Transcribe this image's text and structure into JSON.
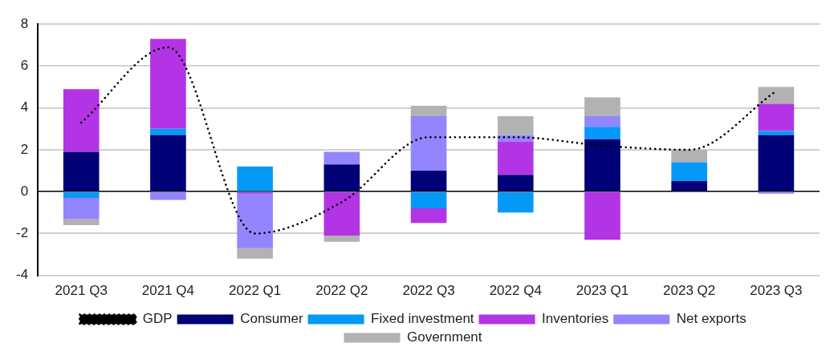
{
  "chart_data": {
    "type": "bar",
    "stacked": true,
    "categories": [
      "2021 Q3",
      "2021 Q4",
      "2022 Q1",
      "2022 Q2",
      "2022 Q3",
      "2022 Q4",
      "2023 Q1",
      "2023 Q2",
      "2023 Q3"
    ],
    "series": [
      {
        "name": "Consumer",
        "color": "#000077",
        "values": [
          1.9,
          2.7,
          0,
          1.3,
          1.0,
          0.8,
          2.5,
          0.5,
          2.7
        ]
      },
      {
        "name": "Fixed investment",
        "color": "#0599f7",
        "values": [
          -0.3,
          0.3,
          1.2,
          0,
          -0.8,
          -1.0,
          0.6,
          0.9,
          0.2
        ]
      },
      {
        "name": "Inventories",
        "color": "#b334e4",
        "values": [
          3.0,
          4.3,
          -0.1,
          -2.1,
          -0.7,
          1.6,
          -2.3,
          0,
          1.3
        ]
      },
      {
        "name": "Net exports",
        "color": "#9385fe",
        "values": [
          -1.0,
          -0.4,
          -2.6,
          0.6,
          2.6,
          0.3,
          0.5,
          0,
          -0.1
        ]
      },
      {
        "name": "Government",
        "color": "#b2b2b2",
        "values": [
          -0.3,
          0,
          -0.5,
          -0.3,
          0.5,
          0.9,
          0.9,
          0.6,
          0.8
        ]
      },
      {
        "name": "GDP",
        "type": "line",
        "color": "#000000",
        "line_style": "dotted",
        "marker": "none",
        "values": [
          3.3,
          6.9,
          -2.0,
          -0.5,
          2.6,
          2.6,
          2.2,
          2.0,
          4.8
        ]
      }
    ],
    "ylim": [
      -4,
      8
    ],
    "yticks": [
      -4,
      -2,
      0,
      2,
      4,
      6,
      8
    ],
    "grid": "y",
    "legend": "bottom"
  }
}
